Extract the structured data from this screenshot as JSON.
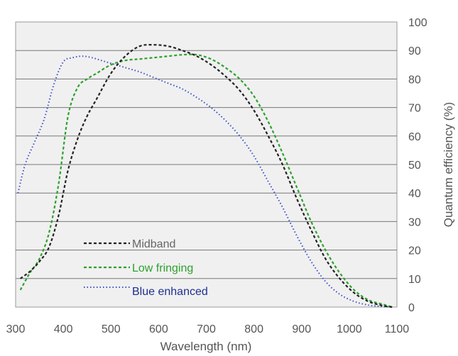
{
  "chart_data": {
    "type": "line",
    "xlabel": "Wavelength (nm)",
    "ylabel": "Quantum efficiency (%)",
    "xlim": [
      300,
      1100
    ],
    "ylim": [
      0,
      100
    ],
    "x_ticks": [
      "300",
      "400",
      "500",
      "600",
      "700",
      "800",
      "900",
      "1000",
      "1100"
    ],
    "y_ticks": [
      "0",
      "10",
      "20",
      "30",
      "40",
      "50",
      "60",
      "70",
      "80",
      "90",
      "100"
    ],
    "grid": true,
    "legend_position": "bottom-left",
    "series": [
      {
        "name": "Midband",
        "color": "#222222",
        "dash": "dashed",
        "x": [
          310,
          330,
          350,
          370,
          390,
          410,
          430,
          450,
          470,
          500,
          530,
          560,
          590,
          620,
          650,
          680,
          710,
          740,
          770,
          800,
          830,
          860,
          890,
          920,
          950,
          980,
          1010,
          1040,
          1070,
          1090
        ],
        "y": [
          10,
          12.5,
          16,
          21,
          32,
          48,
          59,
          67,
          73,
          82,
          88,
          91.5,
          92,
          91.5,
          90,
          88,
          85,
          81,
          76,
          69,
          60,
          50,
          38,
          27,
          17,
          10,
          5,
          2,
          0.5,
          0
        ]
      },
      {
        "name": "Low fringing",
        "color": "#2ea02e",
        "dash": "dashed",
        "x": [
          310,
          330,
          350,
          370,
          390,
          410,
          430,
          450,
          470,
          500,
          530,
          560,
          590,
          620,
          650,
          680,
          710,
          740,
          770,
          800,
          830,
          860,
          890,
          920,
          950,
          980,
          1010,
          1040,
          1070,
          1090
        ],
        "y": [
          6,
          12,
          17,
          26,
          43,
          67,
          77,
          80,
          82,
          85,
          86.5,
          87,
          87.5,
          88,
          88.5,
          88.5,
          87,
          84,
          80,
          74,
          65,
          54,
          42,
          30,
          20,
          12,
          6,
          2.5,
          1,
          0
        ]
      },
      {
        "name": "Blue enhanced",
        "color": "#3a50c8",
        "dash": "dotted",
        "x": [
          305,
          320,
          340,
          360,
          380,
          400,
          420,
          440,
          460,
          480,
          500,
          530,
          560,
          590,
          620,
          650,
          680,
          710,
          740,
          770,
          800,
          830,
          860,
          890,
          920,
          950,
          980,
          1010,
          1040,
          1070,
          1090
        ],
        "y": [
          40,
          50,
          58,
          66,
          78,
          86,
          87.5,
          88,
          87.5,
          86.5,
          85.5,
          84,
          82.5,
          80.5,
          78.5,
          76.5,
          73.5,
          70,
          65.5,
          60,
          53,
          44,
          35,
          25,
          16,
          9,
          4.5,
          2,
          0.7,
          0.2,
          0
        ]
      }
    ]
  },
  "legend": {
    "items": [
      {
        "label": "Midband",
        "color": "#666666"
      },
      {
        "label": "Low fringing",
        "color": "#2ea02e"
      },
      {
        "label": "Blue enhanced",
        "color": "#1f2f8f"
      }
    ]
  },
  "colors": {
    "plot_background": "#f0f0f0",
    "grid": "#777777",
    "border": "#999999"
  }
}
